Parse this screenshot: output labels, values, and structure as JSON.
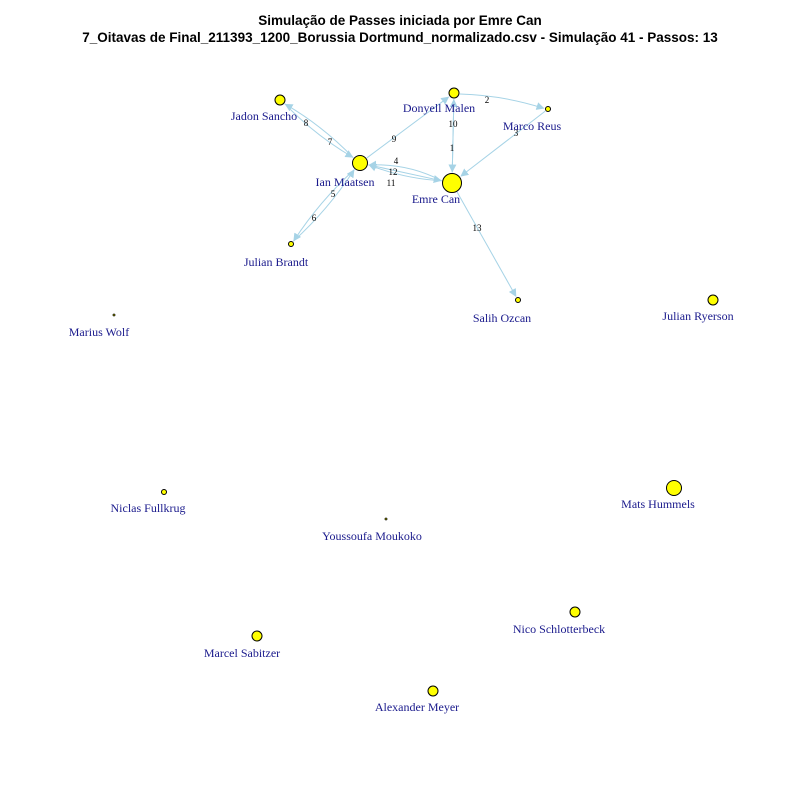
{
  "title": "Simulação de Passes iniciada por Emre Can",
  "subtitle": "7_Oitavas de Final_211393_1200_Borussia Dortmund_normalizado.csv - Simulação 41 - Passos: 13",
  "colors": {
    "node_fill": "#ffff00",
    "node_stroke": "#000000",
    "edge": "#a6d3e6",
    "label": "#1a1a8c"
  },
  "nodes": [
    {
      "id": "jadon",
      "name": "Jadon Sancho",
      "size": "small"
    },
    {
      "id": "donyell",
      "name": "Donyell Malen",
      "size": "small"
    },
    {
      "id": "marco",
      "name": "Marco Reus",
      "size": "tiny"
    },
    {
      "id": "ian",
      "name": "Ian Maatsen",
      "size": "medium"
    },
    {
      "id": "emre",
      "name": "Emre Can",
      "size": "large"
    },
    {
      "id": "brandt",
      "name": "Julian Brandt",
      "size": "tiny"
    },
    {
      "id": "salih",
      "name": "Salih Ozcan",
      "size": "tiny"
    },
    {
      "id": "ryerson",
      "name": "Julian Ryerson",
      "size": "small"
    },
    {
      "id": "wolf",
      "name": "Marius Wolf",
      "size": "dot"
    },
    {
      "id": "fullkrug",
      "name": "Niclas Fullkrug",
      "size": "tiny"
    },
    {
      "id": "moukoko",
      "name": "Youssoufa Moukoko",
      "size": "dot"
    },
    {
      "id": "hummels",
      "name": "Mats Hummels",
      "size": "medium"
    },
    {
      "id": "schlotterbeck",
      "name": "Nico Schlotterbeck",
      "size": "small"
    },
    {
      "id": "sabitzer",
      "name": "Marcel Sabitzer",
      "size": "small"
    },
    {
      "id": "meyer",
      "name": "Alexander Meyer",
      "size": "small"
    }
  ],
  "edges": [
    {
      "from": "emre",
      "to": "donyell",
      "label": "1"
    },
    {
      "from": "donyell",
      "to": "marco",
      "label": "2"
    },
    {
      "from": "marco",
      "to": "emre",
      "label": "3"
    },
    {
      "from": "emre",
      "to": "ian",
      "label": "4"
    },
    {
      "from": "ian",
      "to": "brandt",
      "label": "5"
    },
    {
      "from": "brandt",
      "to": "ian",
      "label": "6"
    },
    {
      "from": "ian",
      "to": "jadon",
      "label": "7"
    },
    {
      "from": "jadon",
      "to": "ian",
      "label": "8"
    },
    {
      "from": "ian",
      "to": "donyell",
      "label": "9"
    },
    {
      "from": "donyell",
      "to": "emre",
      "label": "10"
    },
    {
      "from": "emre",
      "to": "ian",
      "label": "11"
    },
    {
      "from": "ian",
      "to": "emre",
      "label": "12"
    },
    {
      "from": "emre",
      "to": "salih",
      "label": "13"
    }
  ]
}
